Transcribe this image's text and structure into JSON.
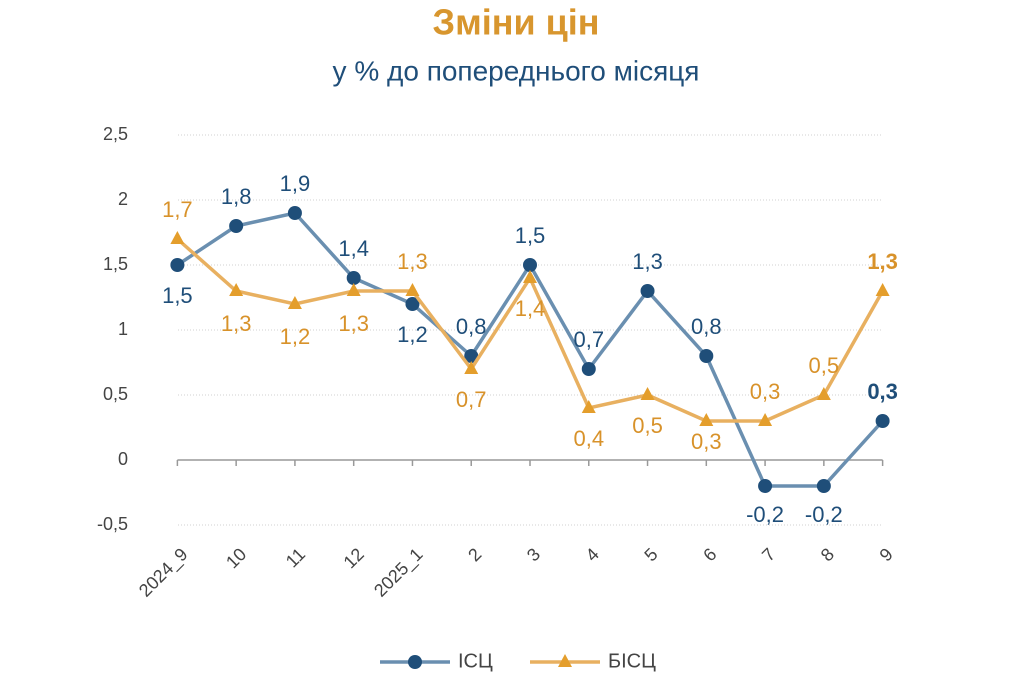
{
  "chart_data": {
    "type": "line",
    "title": "Зміни цін",
    "subtitle": "у % до попереднього місяця",
    "categories": [
      "2024_9",
      "10",
      "11",
      "12",
      "2025_1",
      "2",
      "3",
      "4",
      "5",
      "6",
      "7",
      "8",
      "9"
    ],
    "series": [
      {
        "name": "ІСЦ",
        "color": "#6a8fb0",
        "marker_color": "#1f4e79",
        "label_color": "#1f4e79",
        "values": [
          1.5,
          1.8,
          1.9,
          1.4,
          1.2,
          0.8,
          1.5,
          0.7,
          1.3,
          0.8,
          -0.2,
          -0.2,
          0.3
        ],
        "value_labels": [
          "1,5",
          "1,8",
          "1,9",
          "1,4",
          "1,2",
          "0,8",
          "1,5",
          "0,7",
          "1,3",
          "0,8",
          "-0,2",
          "-0,2",
          "0,3"
        ]
      },
      {
        "name": "БІСЦ",
        "color": "#e8b060",
        "marker_color": "#e49e2c",
        "label_color": "#d8922a",
        "values": [
          1.7,
          1.3,
          1.2,
          1.3,
          1.3,
          0.7,
          1.4,
          0.4,
          0.5,
          0.3,
          0.3,
          0.5,
          1.3
        ],
        "value_labels": [
          "1,7",
          "1,3",
          "1,2",
          "1,3",
          "1,3",
          "0,7",
          "1,4",
          "0,4",
          "0,5",
          "0,3",
          "0,3",
          "0,5",
          "1,3"
        ]
      }
    ],
    "ylim": [
      -0.5,
      2.5
    ],
    "yticks": [
      {
        "value": -0.5,
        "label": "-0,5"
      },
      0,
      {
        "value": 0.5,
        "label": "0,5"
      },
      1,
      {
        "value": 1.5,
        "label": "1,5"
      },
      2,
      {
        "value": 2.5,
        "label": "2,5"
      }
    ],
    "grid": true,
    "legend": "bottom"
  }
}
